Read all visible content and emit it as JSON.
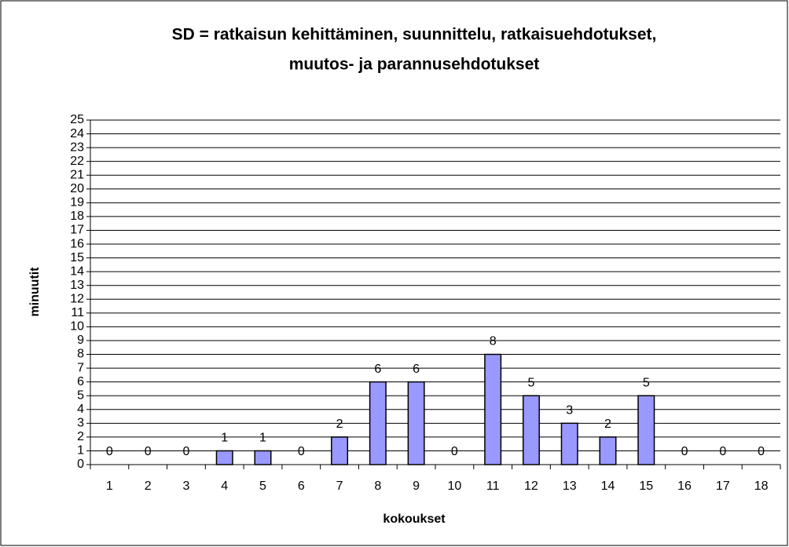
{
  "chart_data": {
    "type": "bar",
    "title": [
      "SD = ratkaisun kehittäminen, suunnittelu, ratkaisuehdotukset,",
      "muutos- ja parannusehdotukset"
    ],
    "x_label": "kokoukset",
    "y_label": "minuutit",
    "categories": [
      "1",
      "2",
      "3",
      "4",
      "5",
      "6",
      "7",
      "8",
      "9",
      "10",
      "11",
      "12",
      "13",
      "14",
      "15",
      "16",
      "17",
      "18"
    ],
    "values": [
      0,
      0,
      0,
      1,
      1,
      0,
      2,
      6,
      6,
      0,
      8,
      5,
      3,
      2,
      5,
      0,
      0,
      0
    ],
    "color": "#9999ff",
    "ylim": [
      0,
      25
    ],
    "yticks": [
      0,
      1,
      2,
      3,
      4,
      5,
      6,
      7,
      8,
      9,
      10,
      11,
      12,
      13,
      14,
      15,
      16,
      17,
      18,
      19,
      20,
      21,
      22,
      23,
      24,
      25
    ],
    "grid": true
  }
}
